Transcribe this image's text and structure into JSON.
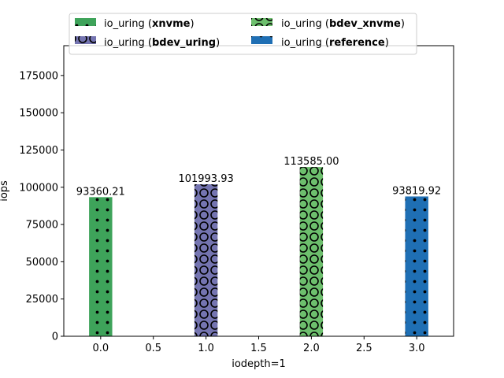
{
  "chart_data": {
    "type": "bar",
    "title": "",
    "xlabel": "iodepth=1",
    "ylabel": "iops",
    "xlim": [
      -0.35,
      3.35
    ],
    "ylim": [
      0,
      195000
    ],
    "xticks": [
      0.0,
      0.5,
      1.0,
      1.5,
      2.0,
      2.5,
      3.0
    ],
    "xtick_labels": [
      "0.0",
      "0.5",
      "1.0",
      "1.5",
      "2.0",
      "2.5",
      "3.0"
    ],
    "yticks": [
      0,
      25000,
      50000,
      75000,
      100000,
      125000,
      150000,
      175000
    ],
    "ytick_labels": [
      "0",
      "25000",
      "50000",
      "75000",
      "100000",
      "125000",
      "150000",
      "175000"
    ],
    "grid": false,
    "legend_position": "top-center",
    "series": [
      {
        "prefix": "io_uring (",
        "bold": "xnvme",
        "suffix": ")",
        "x": 0,
        "value": 93360.21,
        "value_label": "93360.21",
        "color": "#3ea35a",
        "pattern": "dots"
      },
      {
        "prefix": "io_uring (",
        "bold": "bdev_uring",
        "suffix": ")",
        "x": 1,
        "value": 101993.93,
        "value_label": "101993.93",
        "color": "#7474b0",
        "pattern": "circles"
      },
      {
        "prefix": "io_uring (",
        "bold": "bdev_xnvme",
        "suffix": ")",
        "x": 2,
        "value": 113585.0,
        "value_label": "113585.00",
        "color": "#6dbf6d",
        "pattern": "circles"
      },
      {
        "prefix": "io_uring (",
        "bold": "reference",
        "suffix": ")",
        "x": 3,
        "value": 93819.92,
        "value_label": "93819.92",
        "color": "#1f6fb4",
        "pattern": "dots"
      }
    ]
  }
}
